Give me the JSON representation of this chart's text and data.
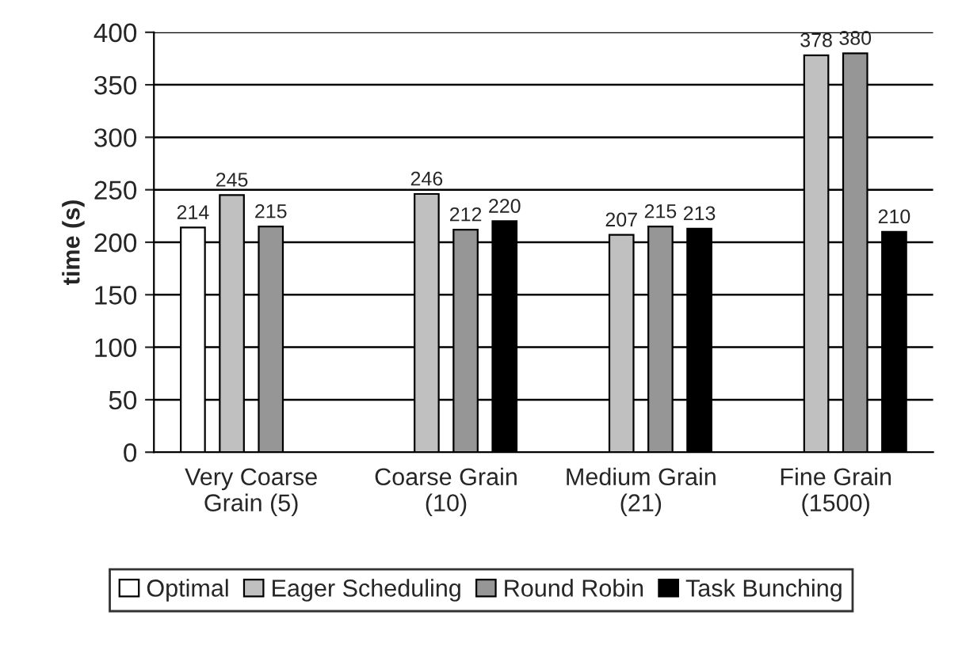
{
  "chart_data": {
    "type": "bar",
    "ylabel": "time (s)",
    "categories": [
      "Very Coarse\nGrain (5)",
      "Coarse Grain\n(10)",
      "Medium Grain\n(21)",
      "Fine Grain\n(1500)"
    ],
    "series": [
      {
        "name": "Optimal",
        "color": "#ffffff",
        "values": [
          214,
          null,
          null,
          null
        ]
      },
      {
        "name": "Eager Scheduling",
        "color": "#c0c0c0",
        "values": [
          245,
          246,
          207,
          378
        ]
      },
      {
        "name": "Round Robin",
        "color": "#969696",
        "values": [
          215,
          212,
          215,
          380
        ]
      },
      {
        "name": "Task Bunching",
        "color": "#000000",
        "values": [
          null,
          220,
          213,
          210
        ]
      }
    ],
    "ylim": [
      0,
      400
    ],
    "yticks": [
      0,
      50,
      100,
      150,
      200,
      250,
      300,
      350,
      400
    ],
    "grid": "y",
    "legend": "bottom",
    "data_labels": true
  }
}
